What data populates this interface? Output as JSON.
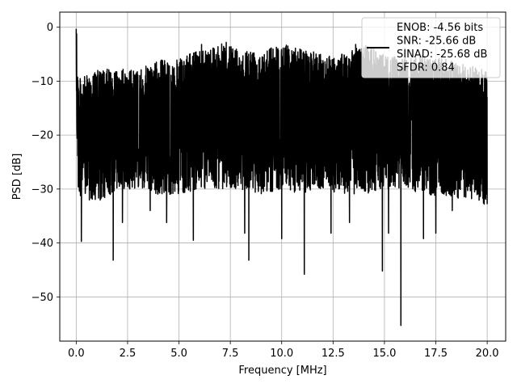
{
  "chart_data": {
    "type": "line",
    "title": "",
    "xlabel": "Frequency [MHz]",
    "ylabel": "PSD [dB]",
    "xlim": [
      -0.8,
      20.9
    ],
    "ylim": [
      -58.2,
      2.8
    ],
    "xticks": [
      0.0,
      2.5,
      5.0,
      7.5,
      10.0,
      12.5,
      15.0,
      17.5,
      20.0
    ],
    "xtick_labels": [
      "0.0",
      "2.5",
      "5.0",
      "7.5",
      "10.0",
      "12.5",
      "15.0",
      "17.5",
      "20.0"
    ],
    "yticks": [
      0,
      -10,
      -20,
      -30,
      -40,
      -50
    ],
    "ytick_labels": [
      "0",
      "−10",
      "−20",
      "−30",
      "−40",
      "−50"
    ],
    "grid": true,
    "legend_position": "top-right",
    "series": [
      {
        "name": "ENOB: -4.56 bits\nSNR: -25.66 dB\nSINAD: -25.68 dB\nSFDR: 0.84",
        "color": "#000000",
        "x_range": [
          0.0,
          20.0
        ],
        "upper_envelope": [
          [
            0.0,
            -0.3
          ],
          [
            0.1,
            -9.5
          ],
          [
            0.5,
            -9
          ],
          [
            1.0,
            -8
          ],
          [
            2.0,
            -7.5
          ],
          [
            3.0,
            -8
          ],
          [
            4.0,
            -6
          ],
          [
            5.0,
            -6
          ],
          [
            6.0,
            -4
          ],
          [
            7.0,
            -3
          ],
          [
            8.0,
            -4
          ],
          [
            9.0,
            -4
          ],
          [
            10.0,
            -3
          ],
          [
            11.0,
            -4
          ],
          [
            12.0,
            -5
          ],
          [
            13.0,
            -5
          ],
          [
            14.0,
            -3
          ],
          [
            15.0,
            -5
          ],
          [
            16.0,
            -6
          ],
          [
            17.0,
            -5
          ],
          [
            18.0,
            -6
          ],
          [
            19.0,
            -7
          ],
          [
            20.0,
            -8
          ]
        ],
        "lower_envelope": [
          [
            0.0,
            -15
          ],
          [
            0.1,
            -31
          ],
          [
            0.5,
            -32
          ],
          [
            1.0,
            -33
          ],
          [
            2.0,
            -30
          ],
          [
            3.0,
            -30
          ],
          [
            4.0,
            -31
          ],
          [
            5.0,
            -31
          ],
          [
            6.0,
            -30
          ],
          [
            7.0,
            -30
          ],
          [
            8.0,
            -30
          ],
          [
            9.0,
            -31
          ],
          [
            10.0,
            -30
          ],
          [
            11.0,
            -31
          ],
          [
            12.0,
            -30
          ],
          [
            13.0,
            -31
          ],
          [
            14.0,
            -31
          ],
          [
            15.0,
            -30
          ],
          [
            16.0,
            -30
          ],
          [
            17.0,
            -31
          ],
          [
            18.0,
            -32
          ],
          [
            19.0,
            -32
          ],
          [
            20.0,
            -33
          ]
        ],
        "deep_nulls": [
          [
            0.25,
            -39.7
          ],
          [
            1.8,
            -43.2
          ],
          [
            2.25,
            -36.2
          ],
          [
            3.6,
            -34
          ],
          [
            4.4,
            -36.2
          ],
          [
            5.7,
            -39.5
          ],
          [
            8.2,
            -38.2
          ],
          [
            8.4,
            -43.2
          ],
          [
            10.0,
            -39.2
          ],
          [
            11.1,
            -45.8
          ],
          [
            12.4,
            -38.2
          ],
          [
            13.3,
            -36.2
          ],
          [
            14.9,
            -45.2
          ],
          [
            15.2,
            -38.2
          ],
          [
            15.8,
            -55.3
          ],
          [
            16.9,
            -39.2
          ],
          [
            17.5,
            -38.2
          ],
          [
            18.3,
            -34
          ]
        ],
        "peaks": [
          [
            0.0,
            -0.3
          ],
          [
            0.02,
            -1.2
          ],
          [
            6.1,
            -3.2
          ],
          [
            7.3,
            -2.8
          ],
          [
            9.4,
            -4.2
          ],
          [
            10.3,
            -3.5
          ],
          [
            13.6,
            -3.2
          ],
          [
            16.0,
            -3.9
          ]
        ]
      }
    ]
  }
}
